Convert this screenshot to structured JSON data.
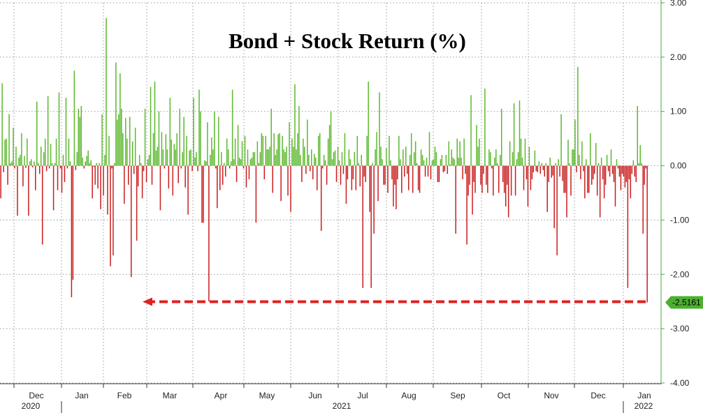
{
  "chart_data": {
    "type": "bar",
    "title": "Bond + Stock Return (%)",
    "xlabel": "",
    "ylabel": "",
    "ylim": [
      -4,
      3
    ],
    "yticks": [
      "3.00",
      "2.00",
      "1.00",
      "0.00",
      "-1.00",
      "-2.00",
      "-3.00",
      "-4.00"
    ],
    "grid": true,
    "x_axis": {
      "month_labels": [
        "Dec",
        "Jan",
        "Feb",
        "Mar",
        "Apr",
        "May",
        "Jun",
        "Jul",
        "Aug",
        "Sep",
        "Oct",
        "Nov",
        "Dec",
        "Jan"
      ],
      "year_labels": [
        "2020",
        "2021",
        "2022"
      ]
    },
    "colors": {
      "positive": "#5cb82e",
      "negative": "#c81e1e",
      "callout_bg": "#4caf30",
      "arrow": "#e02020"
    },
    "last_value_label": "-2.5161",
    "series": [
      {
        "values": [
          -0.6,
          1.52,
          -0.12,
          0.48,
          0.5,
          -0.35,
          0.95,
          0.05,
          0.08,
          0.7,
          -0.05,
          0.35,
          -0.92,
          0.15,
          0.2,
          0.6,
          -0.38,
          0.18,
          -0.04,
          0.5,
          -0.92,
          0.08,
          0.12,
          -0.03,
          0.08,
          -0.45,
          1.18,
          0.05,
          -0.15,
          0.35,
          -1.45,
          0.25,
          0.5,
          -0.1,
          1.28,
          -0.05,
          0.4,
          0.05,
          -0.82,
          0.05,
          0.5,
          -0.45,
          1.35,
          -0.05,
          -0.5,
          0.2,
          -0.3,
          1.25,
          -0.05,
          0.5,
          0.08,
          -2.42,
          -2.1,
          1.75,
          -0.08,
          0.25,
          1.05,
          0.9,
          1.1,
          0.15,
          -0.05,
          0.08,
          0.18,
          0.28,
          0.05,
          0.1,
          -0.6,
          -0.02,
          -0.35,
          0.05,
          -0.42,
          0.05,
          -0.8,
          0.95,
          -0.55,
          0.2,
          2.72,
          -0.9,
          0.55,
          -1.85,
          -0.05,
          -1.65,
          0.05,
          1.9,
          0.85,
          0.95,
          1.7,
          1.05,
          0.6,
          -0.7,
          0.88,
          0.5,
          -0.35,
          0.9,
          -2.05,
          0.45,
          -0.15,
          0.7,
          -1.38,
          -0.38,
          0.2,
          0.05,
          -0.6,
          -0.1,
          1.05,
          -0.3,
          0.12,
          0.2,
          1.45,
          -0.35,
          0.6,
          1.55,
          0.28,
          0.35,
          1.0,
          -0.82,
          0.62,
          0.3,
          -0.05,
          0.58,
          0.3,
          -0.42,
          1.25,
          0.48,
          -0.55,
          0.4,
          0.3,
          0.6,
          -0.32,
          1.05,
          -0.05,
          0.25,
          0.9,
          -0.4,
          0.55,
          -0.9,
          0.28,
          0.3,
          -0.1,
          1.25,
          0.15,
          0.25,
          -0.1,
          1.4,
          1.0,
          -1.05,
          -1.05,
          0.1,
          0.08,
          0.8,
          -2.5,
          0.2,
          0.52,
          0.3,
          1.0,
          -0.05,
          -0.78,
          0.9,
          -0.45,
          0.25,
          -0.35,
          0.05,
          -0.2,
          0.5,
          0.3,
          -0.05,
          0.08,
          1.4,
          0.12,
          0.5,
          -0.3,
          0.75,
          0.15,
          0.12,
          0.45,
          -0.05,
          0.55,
          -0.4,
          0.3,
          -0.25,
          0.12,
          0.15,
          0.25,
          0.25,
          -1.05,
          0.45,
          0.05,
          0.25,
          0.6,
          0.55,
          -0.25,
          0.55,
          0.3,
          0.3,
          0.35,
          1.05,
          -0.5,
          0.6,
          0.2,
          0.3,
          0.58,
          0.6,
          -0.65,
          0.55,
          0.3,
          0.25,
          0.35,
          -0.55,
          0.8,
          -0.85,
          0.5,
          0.35,
          1.5,
          0.3,
          0.6,
          1.1,
          0.2,
          -0.3,
          0.5,
          0.35,
          -0.15,
          0.85,
          0.2,
          -0.1,
          0.3,
          -0.25,
          0.22,
          0.15,
          -0.45,
          0.55,
          0.6,
          -1.2,
          -0.05,
          0.2,
          0.1,
          -0.35,
          0.5,
          0.75,
          1.0,
          0.12,
          0.25,
          0.28,
          -0.3,
          0.35,
          0.1,
          -0.35,
          0.25,
          -0.15,
          0.6,
          -0.7,
          -0.25,
          0.3,
          0.12,
          -0.45,
          -0.25,
          0.25,
          -0.45,
          0.55,
          0.05,
          -0.38,
          0.2,
          -2.25,
          -0.2,
          -0.3,
          0.55,
          1.55,
          -0.85,
          -2.25,
          0.05,
          -1.25,
          0.3,
          0.62,
          -0.65,
          1.35,
          0.35,
          0.12,
          -0.35,
          -0.35,
          0.32,
          -0.5,
          0.55,
          0.1,
          -0.25,
          -0.75,
          -0.35,
          -0.8,
          -0.25,
          0.55,
          0.12,
          -0.5,
          0.3,
          -0.2,
          0.35,
          -0.15,
          -0.45,
          0.2,
          0.6,
          -0.5,
          0.25,
          0.45,
          0.05,
          -0.45,
          -0.5,
          0.3,
          0.2,
          0.1,
          -0.2,
          0.15,
          -0.2,
          0.62,
          -0.25,
          0.1,
          0.12,
          0.35,
          0.25,
          -0.3,
          -0.3,
          0.12,
          0.2,
          -0.12,
          -0.1,
          0.2,
          -0.15,
          0.45,
          0.02,
          0.3,
          0.15,
          0.12,
          -1.25,
          0.5,
          0.15,
          0.45,
          0.15,
          -0.25,
          0.5,
          -0.15,
          -1.45,
          -0.55,
          -0.35,
          1.3,
          -0.9,
          -0.3,
          -0.5,
          0.75,
          0.35,
          0.5,
          -0.35,
          -0.5,
          -0.15,
          1.42,
          -0.35,
          -0.5,
          0.3,
          0.25,
          -0.05,
          -0.55,
          0.15,
          0.3,
          0.05,
          -0.5,
          0.2,
          1.05,
          -0.3,
          -0.5,
          -0.75,
          -0.35,
          -0.95,
          0.45,
          -0.55,
          0.25,
          1.15,
          -0.55,
          0.12,
          0.25,
          1.2,
          0.5,
          0.15,
          -0.45,
          0.5,
          -0.25,
          -0.75,
          0.35,
          -0.45,
          -0.25,
          -0.12,
          0.28,
          -0.1,
          -0.12,
          0.08,
          -0.15,
          0.05,
          -0.08,
          -0.2,
          0.05,
          -0.85,
          -0.3,
          0.15,
          -0.22,
          -0.18,
          -1.15,
          0.05,
          -1.65,
          0.12,
          -0.2,
          0.95,
          -0.28,
          -0.5,
          -0.5,
          -0.95,
          0.48,
          0.05,
          -0.55,
          0.3,
          0.3,
          0.85,
          -0.12,
          1.82,
          0.2,
          -0.25,
          0.45,
          -0.1,
          -0.6,
          0.12,
          -0.5,
          -0.5,
          0.6,
          -0.35,
          -0.25,
          -0.15,
          0.42,
          -0.55,
          0.05,
          -0.95,
          0.15,
          -0.25,
          -0.6,
          -0.35,
          0.2,
          -0.1,
          -0.2,
          0.3,
          -0.15,
          -0.3,
          -0.75,
          0.12,
          -0.05,
          -0.2,
          -0.45,
          -0.15,
          -0.2,
          -0.4,
          -0.3,
          -2.25,
          -0.25,
          -0.6,
          -0.15,
          0.1,
          -0.2,
          -0.3,
          1.1,
          0.05,
          0.38,
          0.05,
          -1.25,
          -0.35,
          -0.05,
          -2.5161
        ]
      }
    ]
  }
}
